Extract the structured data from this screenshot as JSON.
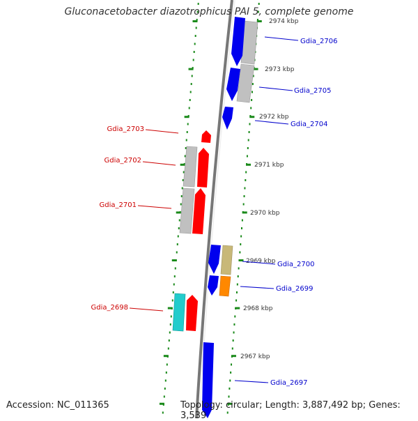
{
  "title": "Gluconacetobacter diazotrophicus PAI 5, complete genome",
  "footer": {
    "accession": "Accession: NC_011365",
    "topology": "Topology: circular; Length: 3,887,492 bp; Genes: 3,539"
  },
  "colors": {
    "backbone": "#777777",
    "tick": "#1a8a1a",
    "plus_strand_label": "#0000cc",
    "minus_strand_label": "#cc0000",
    "blue_gene": "#0000ee",
    "red_gene": "#ff0000",
    "grey_feature": "#bbbbbb",
    "khaki_feature": "#c8b878",
    "orange_feature": "#ff8800",
    "cyan_feature": "#22cccc"
  },
  "scale_labels": [
    "2974 kbp",
    "2973 kbp",
    "2972 kbp",
    "2971 kbp",
    "2970 kbp",
    "2969 kbp",
    "2968 kbp",
    "2967 kbp"
  ],
  "genes_right": [
    "Gdia_2706",
    "Gdia_2705",
    "Gdia_2704",
    "Gdia_2700",
    "Gdia_2699",
    "Gdia_2697"
  ],
  "genes_left": [
    "Gdia_2703",
    "Gdia_2702",
    "Gdia_2701",
    "Gdia_2698"
  ]
}
